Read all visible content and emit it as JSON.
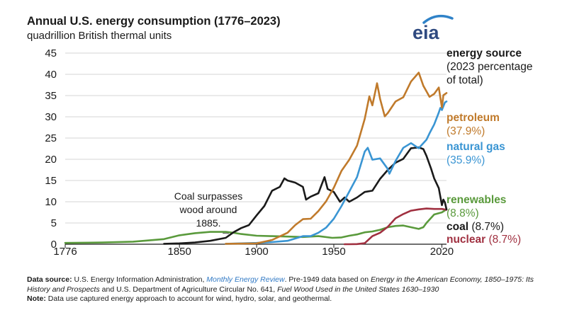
{
  "title": "Annual U.S. energy consumption (1776–2023)",
  "subtitle": "quadrillion British thermal units",
  "logo_text": "eia",
  "legend": {
    "heading": "energy source",
    "subheading_line1": "(2023 percentage",
    "subheading_line2": "of total)",
    "entries": [
      {
        "name": "petroleum",
        "pct": "(37.9%)",
        "color": "#c07a2b"
      },
      {
        "name": "natural gas",
        "pct": "(35.9%)",
        "color": "#3a95d3"
      },
      {
        "name": "renewables",
        "pct": "(8.8%)",
        "color": "#5a9a3c"
      },
      {
        "name": "coal",
        "pct": "(8.7%)",
        "color": "#1a1a1a"
      },
      {
        "name": "nuclear",
        "pct": "(8.7%)",
        "color": "#a03040"
      }
    ]
  },
  "annotation": {
    "line1": "Coal surpasses",
    "line2": "wood around",
    "line3": "1885."
  },
  "footer": {
    "source_label": "Data source:",
    "source_text1": "U.S. Energy Information Administration,",
    "source_link": "Monthly Energy Review",
    "source_text2": ". Pre-1949 data based on",
    "source_italic1": "Energy in the American Economy, 1850–1975: Its History and Prospects",
    "source_text3": "and U.S. Department of Agriculture Circular No. 641,",
    "source_italic2": "Fuel Wood Used in the United States 1630–1930",
    "note_label": "Note:",
    "note_text": "Data use captured energy approach to account for wind, hydro, solar, and geothermal."
  },
  "chart_data": {
    "type": "line",
    "title": "Annual U.S. energy consumption (1776–2023)",
    "ylabel": "quadrillion British thermal units",
    "xlim": [
      1776,
      2023
    ],
    "ylim": [
      0,
      45
    ],
    "x_ticks": [
      1776,
      1850,
      1900,
      1950,
      2020
    ],
    "y_ticks": [
      0,
      5,
      10,
      15,
      20,
      25,
      30,
      35,
      40,
      45
    ],
    "grid": "horizontal",
    "legend_position": "right",
    "series": [
      {
        "name": "renewables",
        "color": "#5a9a3c",
        "points": [
          [
            1776,
            0.3
          ],
          [
            1800,
            0.4
          ],
          [
            1820,
            0.6
          ],
          [
            1840,
            1.2
          ],
          [
            1850,
            2.1
          ],
          [
            1860,
            2.6
          ],
          [
            1870,
            2.9
          ],
          [
            1880,
            2.9
          ],
          [
            1885,
            2.7
          ],
          [
            1890,
            2.4
          ],
          [
            1900,
            2.0
          ],
          [
            1910,
            1.9
          ],
          [
            1920,
            1.8
          ],
          [
            1930,
            1.7
          ],
          [
            1940,
            1.9
          ],
          [
            1949,
            1.5
          ],
          [
            1955,
            1.6
          ],
          [
            1960,
            2.0
          ],
          [
            1965,
            2.3
          ],
          [
            1970,
            2.8
          ],
          [
            1975,
            3.0
          ],
          [
            1980,
            3.4
          ],
          [
            1985,
            4.0
          ],
          [
            1990,
            4.3
          ],
          [
            1995,
            4.4
          ],
          [
            2000,
            4.0
          ],
          [
            2005,
            3.6
          ],
          [
            2008,
            4.0
          ],
          [
            2010,
            5.0
          ],
          [
            2015,
            7.0
          ],
          [
            2020,
            7.5
          ],
          [
            2023,
            8.2
          ]
        ]
      },
      {
        "name": "coal",
        "color": "#1a1a1a",
        "points": [
          [
            1840,
            0.1
          ],
          [
            1850,
            0.2
          ],
          [
            1860,
            0.4
          ],
          [
            1870,
            0.8
          ],
          [
            1880,
            1.5
          ],
          [
            1885,
            2.8
          ],
          [
            1890,
            3.8
          ],
          [
            1895,
            4.5
          ],
          [
            1900,
            6.8
          ],
          [
            1905,
            9.0
          ],
          [
            1910,
            12.6
          ],
          [
            1915,
            13.5
          ],
          [
            1918,
            15.5
          ],
          [
            1920,
            15.0
          ],
          [
            1925,
            14.5
          ],
          [
            1930,
            13.5
          ],
          [
            1932,
            10.5
          ],
          [
            1935,
            11.2
          ],
          [
            1940,
            12.0
          ],
          [
            1944,
            15.8
          ],
          [
            1946,
            13.0
          ],
          [
            1950,
            12.3
          ],
          [
            1954,
            10.0
          ],
          [
            1957,
            11.0
          ],
          [
            1960,
            10.0
          ],
          [
            1965,
            11.0
          ],
          [
            1970,
            12.3
          ],
          [
            1975,
            12.6
          ],
          [
            1980,
            15.4
          ],
          [
            1985,
            17.5
          ],
          [
            1990,
            19.2
          ],
          [
            1995,
            20.1
          ],
          [
            2000,
            22.6
          ],
          [
            2005,
            22.8
          ],
          [
            2008,
            22.4
          ],
          [
            2010,
            20.8
          ],
          [
            2013,
            17.8
          ],
          [
            2015,
            15.5
          ],
          [
            2018,
            13.2
          ],
          [
            2020,
            9.2
          ],
          [
            2021,
            10.5
          ],
          [
            2022,
            9.8
          ],
          [
            2023,
            8.2
          ]
        ]
      },
      {
        "name": "petroleum",
        "color": "#c07a2b",
        "points": [
          [
            1880,
            0.1
          ],
          [
            1900,
            0.2
          ],
          [
            1910,
            1.0
          ],
          [
            1920,
            2.7
          ],
          [
            1925,
            4.5
          ],
          [
            1930,
            5.9
          ],
          [
            1935,
            6.0
          ],
          [
            1940,
            7.8
          ],
          [
            1945,
            10.1
          ],
          [
            1950,
            13.3
          ],
          [
            1955,
            17.3
          ],
          [
            1960,
            19.9
          ],
          [
            1965,
            23.2
          ],
          [
            1970,
            29.5
          ],
          [
            1973,
            34.8
          ],
          [
            1975,
            32.7
          ],
          [
            1978,
            37.9
          ],
          [
            1980,
            34.2
          ],
          [
            1983,
            30.1
          ],
          [
            1985,
            30.9
          ],
          [
            1990,
            33.6
          ],
          [
            1995,
            34.6
          ],
          [
            2000,
            38.3
          ],
          [
            2005,
            40.4
          ],
          [
            2008,
            37.3
          ],
          [
            2010,
            36.0
          ],
          [
            2012,
            34.7
          ],
          [
            2015,
            35.4
          ],
          [
            2018,
            36.9
          ],
          [
            2020,
            32.2
          ],
          [
            2021,
            35.1
          ],
          [
            2023,
            35.6
          ]
        ]
      },
      {
        "name": "natural gas",
        "color": "#3a95d3",
        "points": [
          [
            1880,
            0.1
          ],
          [
            1900,
            0.3
          ],
          [
            1910,
            0.5
          ],
          [
            1920,
            0.8
          ],
          [
            1930,
            1.9
          ],
          [
            1935,
            1.9
          ],
          [
            1940,
            2.7
          ],
          [
            1945,
            3.9
          ],
          [
            1950,
            6.0
          ],
          [
            1955,
            9.0
          ],
          [
            1960,
            12.4
          ],
          [
            1965,
            15.8
          ],
          [
            1970,
            21.8
          ],
          [
            1972,
            22.7
          ],
          [
            1975,
            19.9
          ],
          [
            1980,
            20.2
          ],
          [
            1985,
            17.7
          ],
          [
            1986,
            16.6
          ],
          [
            1990,
            19.6
          ],
          [
            1995,
            22.7
          ],
          [
            2000,
            23.8
          ],
          [
            2005,
            22.6
          ],
          [
            2010,
            24.6
          ],
          [
            2012,
            26.1
          ],
          [
            2015,
            28.2
          ],
          [
            2018,
            31.0
          ],
          [
            2019,
            32.1
          ],
          [
            2020,
            31.6
          ],
          [
            2022,
            33.4
          ],
          [
            2023,
            33.6
          ]
        ]
      },
      {
        "name": "nuclear",
        "color": "#a03040",
        "points": [
          [
            1957,
            0.0
          ],
          [
            1960,
            0.0
          ],
          [
            1965,
            0.04
          ],
          [
            1970,
            0.24
          ],
          [
            1975,
            1.9
          ],
          [
            1980,
            2.7
          ],
          [
            1985,
            4.1
          ],
          [
            1990,
            6.1
          ],
          [
            1995,
            7.1
          ],
          [
            2000,
            7.9
          ],
          [
            2005,
            8.2
          ],
          [
            2010,
            8.4
          ],
          [
            2015,
            8.3
          ],
          [
            2020,
            8.3
          ],
          [
            2023,
            8.1
          ]
        ]
      }
    ]
  }
}
